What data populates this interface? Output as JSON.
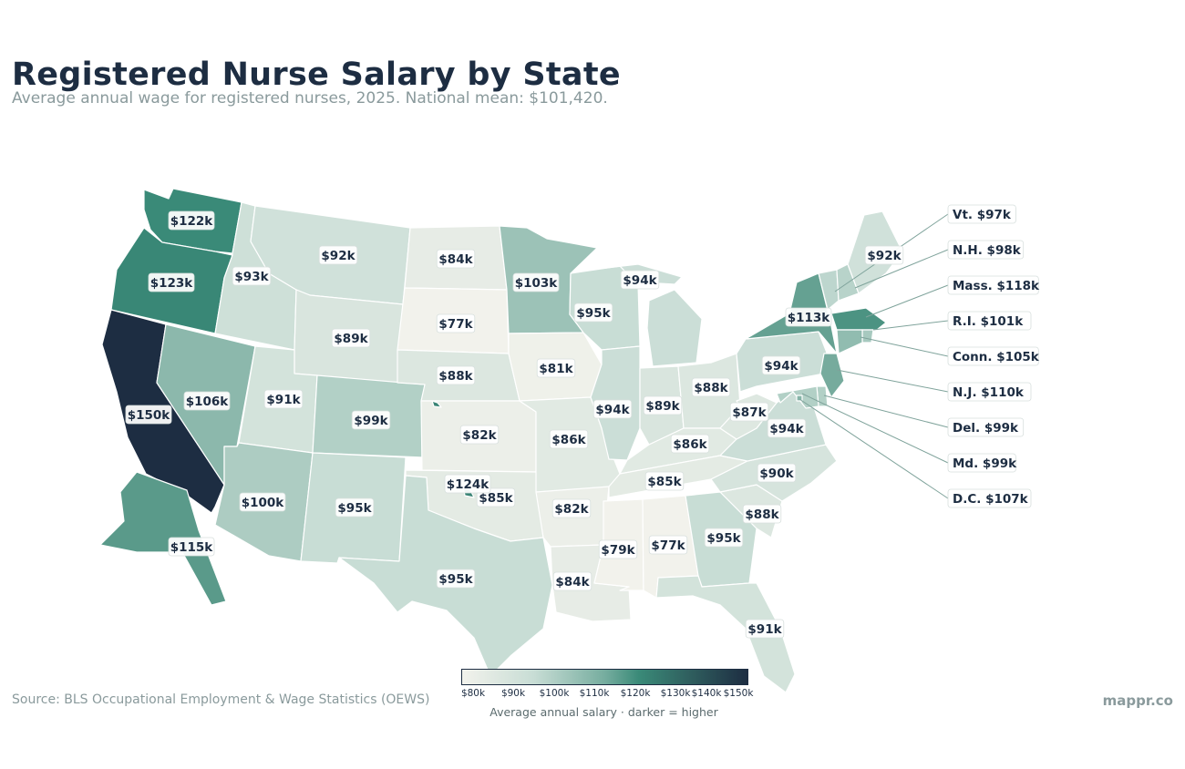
{
  "title": "Registered Nurse Salary by State",
  "subtitle": "Average annual wage for registered nurses, 2025. National mean: $101,420.",
  "source": "Source: BLS Occupational Employment & Wage Statistics (OEWS)",
  "brand": "mappr.co",
  "legend": {
    "ticks": [
      "$80k",
      "$90k",
      "$100k",
      "$110k",
      "$120k",
      "$130k",
      "$140k",
      "$150k"
    ],
    "caption": "Average annual salary  ·  darker = higher",
    "min": 80,
    "max": 150
  },
  "colors": {
    "low": "#f2f2ec",
    "mid": "#c8ddd5",
    "high": "#1d2d42",
    "label_text": "#1d2d42",
    "leader_line": "#7fa39b"
  },
  "states": [
    {
      "id": "WA",
      "label": "$122k",
      "value": 122
    },
    {
      "id": "OR",
      "label": "$123k",
      "value": 123
    },
    {
      "id": "CA",
      "label": "$150k",
      "value": 150
    },
    {
      "id": "NV",
      "label": "$106k",
      "value": 106
    },
    {
      "id": "ID",
      "label": "$93k",
      "value": 93
    },
    {
      "id": "MT",
      "label": "$92k",
      "value": 92
    },
    {
      "id": "WY",
      "label": "$89k",
      "value": 89
    },
    {
      "id": "UT",
      "label": "$91k",
      "value": 91
    },
    {
      "id": "AZ",
      "label": "$100k",
      "value": 100
    },
    {
      "id": "CO",
      "label": "$99k",
      "value": 99
    },
    {
      "id": "NM",
      "label": "$95k",
      "value": 95
    },
    {
      "id": "ND",
      "label": "$84k",
      "value": 84
    },
    {
      "id": "SD",
      "label": "$77k",
      "value": 77
    },
    {
      "id": "NE",
      "label": "$88k",
      "value": 88
    },
    {
      "id": "KS",
      "label": "$82k",
      "value": 82
    },
    {
      "id": "OK",
      "label": "$85k",
      "value": 85
    },
    {
      "id": "TX",
      "label": "$95k",
      "value": 95
    },
    {
      "id": "MN",
      "label": "$103k",
      "value": 103
    },
    {
      "id": "IA",
      "label": "$81k",
      "value": 81
    },
    {
      "id": "MO",
      "label": "$86k",
      "value": 86
    },
    {
      "id": "AR",
      "label": "$82k",
      "value": 82
    },
    {
      "id": "LA",
      "label": "$84k",
      "value": 84
    },
    {
      "id": "WI",
      "label": "$95k",
      "value": 95
    },
    {
      "id": "IL",
      "label": "$94k",
      "value": 94
    },
    {
      "id": "MI",
      "label": "$94k",
      "value": 94
    },
    {
      "id": "IN",
      "label": "$89k",
      "value": 89
    },
    {
      "id": "OH",
      "label": "$88k",
      "value": 88
    },
    {
      "id": "KY",
      "label": "$86k",
      "value": 86
    },
    {
      "id": "TN",
      "label": "$85k",
      "value": 85
    },
    {
      "id": "MS",
      "label": "$79k",
      "value": 79
    },
    {
      "id": "AL",
      "label": "$77k",
      "value": 77
    },
    {
      "id": "GA",
      "label": "$95k",
      "value": 95
    },
    {
      "id": "FL",
      "label": "$91k",
      "value": 91
    },
    {
      "id": "SC",
      "label": "$88k",
      "value": 88
    },
    {
      "id": "NC",
      "label": "$90k",
      "value": 90
    },
    {
      "id": "VA",
      "label": "$94k",
      "value": 94
    },
    {
      "id": "WV",
      "label": "$87k",
      "value": 87
    },
    {
      "id": "PA",
      "label": "$94k",
      "value": 94
    },
    {
      "id": "NY",
      "label": "$113k",
      "value": 113
    },
    {
      "id": "ME",
      "label": "$92k",
      "value": 92
    },
    {
      "id": "AK",
      "label": "$115k",
      "value": 115
    },
    {
      "id": "HI",
      "label": "$124k",
      "value": 124
    }
  ],
  "callouts": [
    {
      "id": "VT",
      "text": "Vt. $97k",
      "value": 97
    },
    {
      "id": "NH",
      "text": "N.H. $98k",
      "value": 98
    },
    {
      "id": "MA",
      "text": "Mass. $118k",
      "value": 118
    },
    {
      "id": "RI",
      "text": "R.I. $101k",
      "value": 101
    },
    {
      "id": "CT",
      "text": "Conn. $105k",
      "value": 105
    },
    {
      "id": "NJ",
      "text": "N.J. $110k",
      "value": 110
    },
    {
      "id": "DE",
      "text": "Del. $99k",
      "value": 99
    },
    {
      "id": "MD",
      "text": "Md. $99k",
      "value": 99
    },
    {
      "id": "DC",
      "text": "D.C. $107k",
      "value": 107
    }
  ]
}
